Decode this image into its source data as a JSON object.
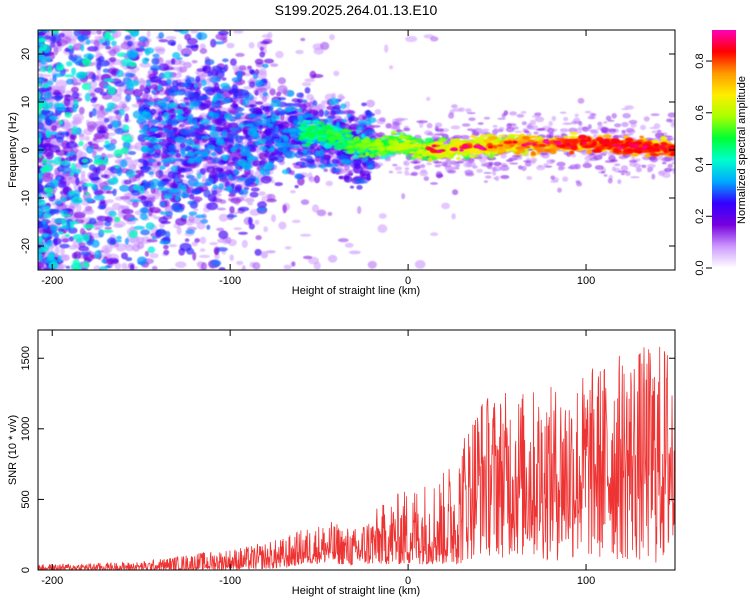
{
  "title": "S199.2025.264.01.13.E10",
  "colors": {
    "snr_line": "#ee3333",
    "frame": "#000000",
    "background": "#ffffff"
  },
  "chart_data": [
    {
      "type": "heatmap",
      "name": "spectrogram",
      "xlabel": "Height of straight line (km)",
      "ylabel": "Frequency (Hz)",
      "xlim": [
        -208,
        150
      ],
      "ylim": [
        -25,
        25
      ],
      "xticks": [
        -200,
        -100,
        0,
        100
      ],
      "xtick_labels": [
        "-200",
        "-100",
        "0",
        "100"
      ],
      "yticks": [
        20,
        10,
        0,
        -10,
        -20
      ],
      "ytick_labels": [
        "20",
        "10",
        "0",
        "-10",
        "-20"
      ],
      "signal_band": [
        {
          "x": -50,
          "f": 3.5
        },
        {
          "x": -40,
          "f": 2.5
        },
        {
          "x": -30,
          "f": 1.0
        },
        {
          "x": -20,
          "f": 0.5
        },
        {
          "x": -10,
          "f": 0.8
        },
        {
          "x": 0,
          "f": 1.0
        },
        {
          "x": 10,
          "f": 0.0
        },
        {
          "x": 20,
          "f": 0.2
        },
        {
          "x": 40,
          "f": 0.8
        },
        {
          "x": 60,
          "f": 1.2
        },
        {
          "x": 80,
          "f": 1.3
        },
        {
          "x": 100,
          "f": 1.4
        },
        {
          "x": 120,
          "f": 0.8
        },
        {
          "x": 150,
          "f": 0.3
        }
      ],
      "colorbar": {
        "label": "Normalized spectral amplitude",
        "range": [
          0.0,
          0.92
        ],
        "ticks": [
          0.0,
          0.2,
          0.4,
          0.6,
          0.8
        ],
        "tick_labels": [
          "0.0",
          "0.2",
          "0.4",
          "0.6",
          "0.8"
        ],
        "colors": [
          "#ffffff",
          "#cc99ff",
          "#7700dd",
          "#3300ff",
          "#00aaff",
          "#00ffcc",
          "#00ff33",
          "#aaff00",
          "#ffee00",
          "#ff9900",
          "#ff0000",
          "#ff00bb"
        ]
      }
    },
    {
      "type": "line",
      "name": "snr",
      "xlabel": "Height of straight line (km)",
      "ylabel": "SNR (10 * v/v)",
      "xlim": [
        -208,
        150
      ],
      "ylim": [
        0,
        1700
      ],
      "xticks": [
        -200,
        -100,
        0,
        100
      ],
      "xtick_labels": [
        "-200",
        "-100",
        "0",
        "100"
      ],
      "yticks": [
        0,
        500,
        1000,
        1500
      ],
      "ytick_labels": [
        "0",
        "500",
        "1000",
        "1500"
      ],
      "envelope": [
        {
          "x": -208,
          "lo": 0,
          "hi": 40
        },
        {
          "x": -150,
          "lo": 0,
          "hi": 60
        },
        {
          "x": -120,
          "lo": 0,
          "hi": 120
        },
        {
          "x": -90,
          "lo": 5,
          "hi": 170
        },
        {
          "x": -70,
          "lo": 10,
          "hi": 230
        },
        {
          "x": -60,
          "lo": 40,
          "hi": 290
        },
        {
          "x": -45,
          "lo": 50,
          "hi": 350
        },
        {
          "x": -30,
          "lo": 30,
          "hi": 300
        },
        {
          "x": -20,
          "lo": 40,
          "hi": 420
        },
        {
          "x": 0,
          "lo": 40,
          "hi": 600
        },
        {
          "x": 20,
          "lo": 40,
          "hi": 700
        },
        {
          "x": 30,
          "lo": 40,
          "hi": 950
        },
        {
          "x": 40,
          "lo": 100,
          "hi": 1250
        },
        {
          "x": 80,
          "lo": 60,
          "hi": 1300
        },
        {
          "x": 120,
          "lo": 60,
          "hi": 1550
        },
        {
          "x": 150,
          "lo": 10,
          "hi": 1650
        }
      ]
    }
  ]
}
